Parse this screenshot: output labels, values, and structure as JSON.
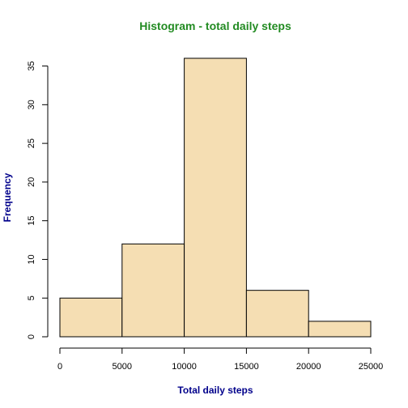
{
  "chart_data": {
    "type": "bar",
    "title": "Histogram - total daily steps",
    "xlabel": "Total daily steps",
    "ylabel": "Frequency",
    "bins": [
      {
        "from": 0,
        "to": 5000,
        "count": 5
      },
      {
        "from": 5000,
        "to": 10000,
        "count": 12
      },
      {
        "from": 10000,
        "to": 15000,
        "count": 36
      },
      {
        "from": 15000,
        "to": 20000,
        "count": 6
      },
      {
        "from": 20000,
        "to": 25000,
        "count": 2
      }
    ],
    "xlim": [
      0,
      25000
    ],
    "ylim": [
      0,
      36
    ],
    "x_ticks": [
      0,
      5000,
      10000,
      15000,
      20000,
      25000
    ],
    "y_ticks": [
      0,
      5,
      10,
      15,
      20,
      25,
      30,
      35
    ],
    "grid": false,
    "colors": {
      "bar_fill": "#F5DEB3",
      "bar_stroke": "#000000",
      "title": "#228B22",
      "axis_label": "#00008B"
    }
  }
}
